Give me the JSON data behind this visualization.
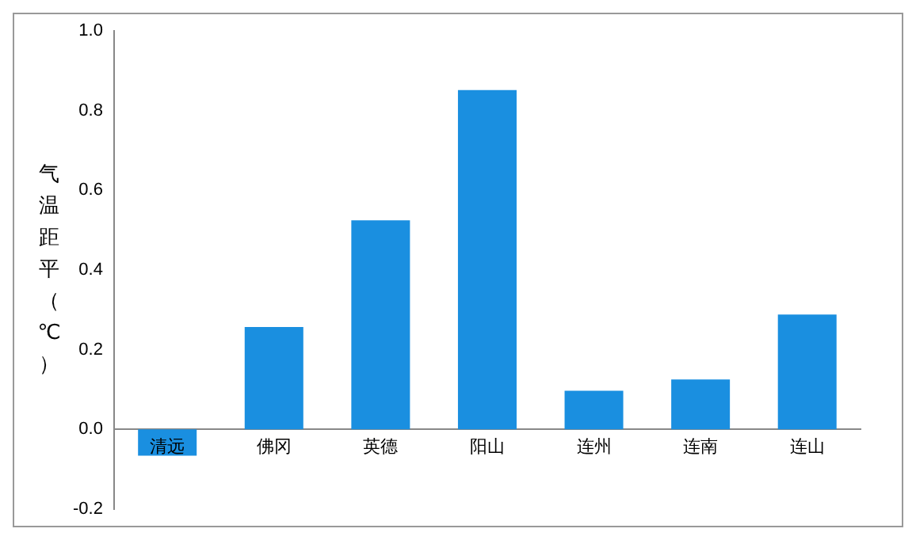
{
  "chart_data": {
    "type": "bar",
    "ylabel": "气温距平（℃）",
    "categories": [
      "清远",
      "佛冈",
      "英德",
      "阳山",
      "连州",
      "连南",
      "连山"
    ],
    "values": [
      -0.066,
      0.257,
      0.525,
      0.852,
      0.097,
      0.125,
      0.288
    ],
    "color": "#1a8fe0",
    "ylim": [
      -0.2,
      1.0
    ],
    "yticks": [
      {
        "value": -0.2,
        "label": "-0.2"
      },
      {
        "value": 0,
        "label": "0.0"
      },
      {
        "value": 0.2,
        "label": "0.2"
      },
      {
        "value": 0.4,
        "label": "0.4"
      },
      {
        "value": 0.6,
        "label": "0.6"
      },
      {
        "value": 0.8,
        "label": "0.8"
      },
      {
        "value": 1.0,
        "label": "1.0"
      }
    ],
    "grid": false
  }
}
